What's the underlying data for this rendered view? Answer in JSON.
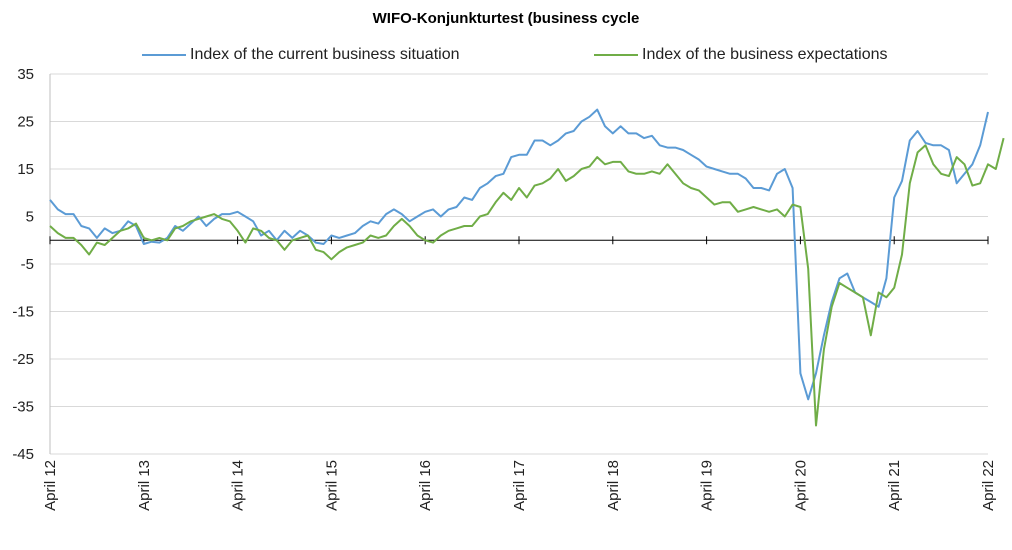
{
  "chart_data": {
    "type": "line",
    "title": "WIFO-Konjunkturtest (business cycle",
    "xlabel": "",
    "ylabel": "",
    "ylim": [
      -45,
      35
    ],
    "yticks": [
      35,
      25,
      15,
      5,
      -5,
      -15,
      -25,
      -35,
      -45
    ],
    "x_tick_labels": [
      "April 12",
      "April 13",
      "April 14",
      "April 15",
      "April 16",
      "April 17",
      "April 18",
      "April 19",
      "April 20",
      "April 21",
      "April 22"
    ],
    "x_start": "April 12",
    "x_end": "April 22",
    "grid": "horizontal",
    "legend_position": "top",
    "series": [
      {
        "name": "Index of the current business situation",
        "color": "#5b9bd5",
        "values": [
          8.5,
          6.5,
          5.5,
          5.5,
          3,
          2.5,
          0.5,
          2.5,
          1.5,
          2,
          4,
          3,
          -0.8,
          -0.3,
          -0.5,
          0.5,
          3,
          2,
          3.5,
          5,
          3,
          4.5,
          5.5,
          5.5,
          6,
          5,
          4,
          1,
          2,
          0,
          2,
          0.5,
          2,
          1,
          -0.5,
          -0.8,
          1,
          0.5,
          1,
          1.5,
          3,
          4,
          3.5,
          5.5,
          6.5,
          5.5,
          4,
          5,
          6,
          6.5,
          5,
          6.5,
          7,
          9,
          8.5,
          11,
          12,
          13.5,
          14,
          17.5,
          18,
          18,
          21,
          21,
          20,
          21,
          22.5,
          23,
          25,
          26,
          27.5,
          24,
          22.5,
          24,
          22.5,
          22.5,
          21.5,
          22,
          20,
          19.5,
          19.5,
          19,
          18,
          17,
          15.5,
          15,
          14.5,
          14,
          14,
          13,
          11,
          11,
          10.5,
          14,
          15,
          11,
          -28,
          -33.5,
          -28,
          -20,
          -13,
          -8,
          -7,
          -11,
          -12,
          -13,
          -14,
          -8,
          9,
          12.5,
          21,
          23,
          20.5,
          20,
          20,
          19,
          12,
          14,
          16,
          20,
          27
        ]
      },
      {
        "name": "Index of the business expectations",
        "color": "#70ad47",
        "values": [
          3,
          1.5,
          0.5,
          0.5,
          -1,
          -3,
          -0.5,
          -1,
          0.5,
          2,
          2.5,
          3.5,
          0.5,
          0,
          0.5,
          0,
          2.5,
          3,
          4,
          4.5,
          5,
          5.5,
          4.5,
          4,
          2,
          -0.5,
          2.5,
          2,
          0.5,
          0,
          -2,
          0,
          0.5,
          1,
          -2,
          -2.5,
          -4,
          -2.5,
          -1.5,
          -1,
          -0.5,
          1,
          0.5,
          1,
          3,
          4.5,
          3,
          1,
          0,
          -0.5,
          1,
          2,
          2.5,
          3,
          3,
          5,
          5.5,
          8,
          10,
          8.5,
          11,
          9,
          11.5,
          12,
          13,
          15,
          12.5,
          13.5,
          15,
          15.5,
          17.5,
          16,
          16.5,
          16.5,
          14.5,
          14,
          14,
          14.5,
          14,
          16,
          14,
          12,
          11,
          10.5,
          9,
          7.5,
          8,
          8,
          6,
          6.5,
          7,
          6.5,
          6,
          6.5,
          5,
          7.5,
          7,
          -6,
          -39,
          -23,
          -14,
          -9,
          -10,
          -11,
          -12,
          -20,
          -11,
          -12,
          -10,
          -3,
          12,
          18.5,
          20,
          16,
          14,
          13.5,
          17.5,
          16,
          11.5,
          12,
          16,
          15,
          21.5
        ]
      }
    ]
  }
}
